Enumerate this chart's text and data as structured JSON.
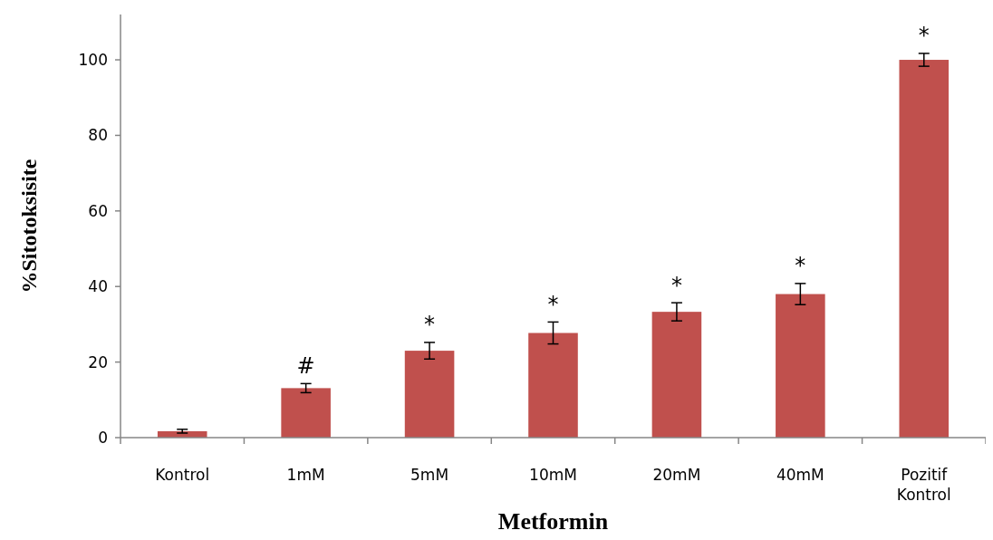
{
  "chart_data": {
    "type": "bar",
    "xlabel": "Metformin",
    "ylabel": "%Sitotoksisite",
    "categories": [
      "Kontrol",
      "1mM",
      "5mM",
      "10mM",
      "20mM",
      "40mM",
      "Pozitif Kontrol"
    ],
    "values": [
      1.7,
      13.1,
      23.0,
      27.7,
      33.3,
      38.0,
      100
    ],
    "errors": [
      0.5,
      1.2,
      2.2,
      2.9,
      2.4,
      2.8,
      1.7
    ],
    "color": "#c0504d",
    "ylim": [
      0,
      112
    ],
    "yticks": [
      0,
      20,
      40,
      60,
      80,
      100
    ],
    "grid": false,
    "annotations": [
      {
        "text": "#",
        "x": "1mM",
        "y": 14.3
      },
      {
        "text": "*",
        "x": "5mM",
        "y": 25.2
      },
      {
        "text": "*",
        "x": "10mM",
        "y": 30.6
      },
      {
        "text": "*",
        "x": "20mM",
        "y": 35.7
      },
      {
        "text": "*",
        "x": "40mM",
        "y": 40.8
      },
      {
        "text": "*",
        "x": "Pozitif Kontrol",
        "y": 101.7
      }
    ]
  }
}
